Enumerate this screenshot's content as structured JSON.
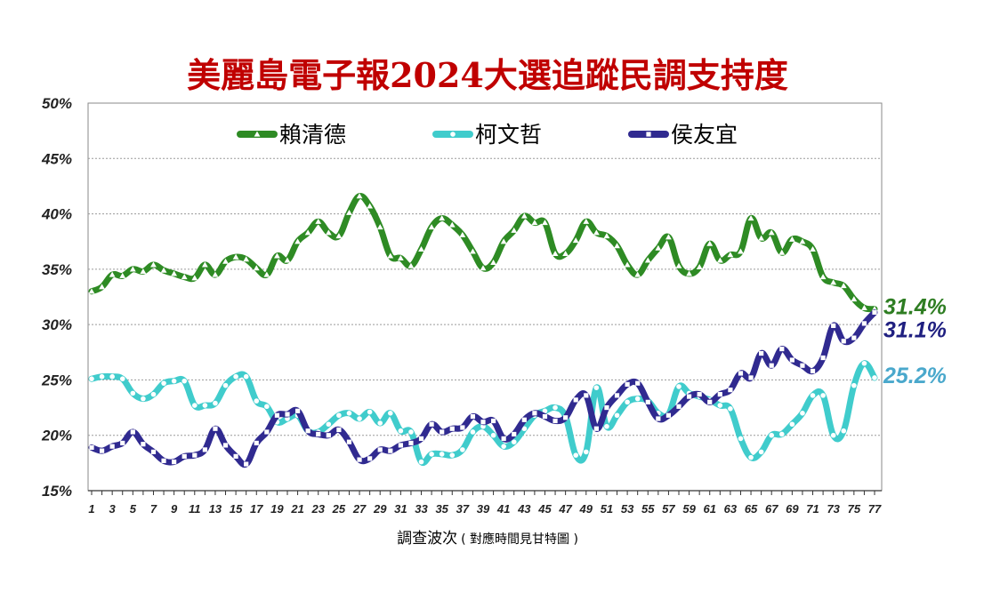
{
  "chart_data": {
    "type": "line",
    "title": "美麗島電子報2024大選追蹤民調支持度",
    "xlabel": "調查波次",
    "xlabel_note": "( 對應時間見甘特圖 )",
    "ylim": [
      15,
      50
    ],
    "yticks": [
      "15%",
      "20%",
      "25%",
      "30%",
      "35%",
      "40%",
      "45%",
      "50%"
    ],
    "ytick_values": [
      15,
      20,
      25,
      30,
      35,
      40,
      45,
      50
    ],
    "x": [
      1,
      2,
      3,
      4,
      5,
      6,
      7,
      8,
      9,
      10,
      11,
      12,
      13,
      14,
      15,
      16,
      17,
      18,
      19,
      20,
      21,
      22,
      23,
      24,
      25,
      26,
      27,
      28,
      29,
      30,
      31,
      32,
      33,
      34,
      35,
      36,
      37,
      38,
      39,
      40,
      41,
      42,
      43,
      44,
      45,
      46,
      47,
      48,
      49,
      50,
      51,
      52,
      53,
      54,
      55,
      56,
      57,
      58,
      59,
      60,
      61,
      62,
      63,
      64,
      65,
      66,
      67,
      68,
      69,
      70,
      71,
      72,
      73,
      74,
      75,
      76,
      77
    ],
    "xticks": [
      "1",
      "3",
      "5",
      "7",
      "9",
      "11",
      "13",
      "15",
      "17",
      "19",
      "21",
      "23",
      "25",
      "27",
      "29",
      "31",
      "33",
      "35",
      "37",
      "39",
      "41",
      "43",
      "45",
      "47",
      "49",
      "51",
      "53",
      "55",
      "57",
      "59",
      "61",
      "63",
      "65",
      "67",
      "69",
      "71",
      "73",
      "75",
      "77"
    ],
    "xtick_values": [
      1,
      3,
      5,
      7,
      9,
      11,
      13,
      15,
      17,
      19,
      21,
      23,
      25,
      27,
      29,
      31,
      33,
      35,
      37,
      39,
      41,
      43,
      45,
      47,
      49,
      51,
      53,
      55,
      57,
      59,
      61,
      63,
      65,
      67,
      69,
      71,
      73,
      75,
      77
    ],
    "grid": true,
    "legend_position": "top",
    "series": [
      {
        "name": "賴清德",
        "color": "#2e8b24",
        "marker": "triangle",
        "end_label": "31.4%",
        "end_label_color": "#2e7d22",
        "values": [
          33.0,
          33.4,
          34.5,
          34.4,
          35.0,
          34.8,
          35.4,
          34.9,
          34.6,
          34.3,
          34.2,
          35.4,
          34.5,
          35.7,
          36.1,
          35.9,
          35.1,
          34.5,
          36.2,
          35.8,
          37.5,
          38.3,
          39.3,
          38.3,
          38.0,
          40.1,
          41.6,
          40.7,
          38.8,
          36.2,
          36.0,
          35.3,
          36.8,
          38.8,
          39.6,
          39.0,
          38.1,
          36.6,
          35.1,
          35.6,
          37.5,
          38.5,
          39.8,
          39.2,
          39.2,
          36.4,
          36.4,
          37.6,
          39.3,
          38.3,
          38.0,
          37.1,
          35.4,
          34.5,
          35.8,
          36.9,
          37.9,
          35.3,
          34.6,
          35.2,
          37.3,
          35.8,
          36.3,
          36.6,
          39.6,
          37.8,
          38.3,
          36.5,
          37.7,
          37.5,
          36.8,
          34.3,
          33.8,
          33.5,
          32.3,
          31.5,
          31.4
        ]
      },
      {
        "name": "柯文哲",
        "color": "#40cccc",
        "marker": "circle",
        "end_label": "25.2%",
        "end_label_color": "#4aa8cc",
        "values": [
          25.1,
          25.3,
          25.3,
          25.1,
          23.8,
          23.3,
          23.7,
          24.7,
          24.9,
          24.9,
          22.7,
          22.7,
          22.9,
          24.5,
          25.3,
          25.3,
          23.1,
          22.6,
          21.2,
          21.5,
          21.8,
          20.4,
          20.3,
          21.0,
          21.8,
          22.0,
          21.5,
          22.1,
          21.1,
          22.0,
          20.4,
          20.3,
          17.6,
          18.3,
          18.3,
          18.2,
          18.7,
          20.3,
          20.8,
          20.0,
          19.0,
          19.4,
          20.6,
          21.8,
          22.2,
          22.5,
          21.7,
          18.2,
          18.5,
          24.3,
          20.8,
          21.8,
          23.0,
          23.3,
          23.1,
          22.0,
          21.9,
          24.4,
          23.8,
          23.5,
          23.2,
          22.7,
          22.4,
          19.7,
          18.0,
          18.5,
          20.0,
          20.1,
          21.0,
          22.0,
          23.6,
          23.6,
          20.0,
          20.4,
          24.5,
          26.5,
          25.2
        ]
      },
      {
        "name": "侯友宜",
        "color": "#302a90",
        "marker": "square",
        "end_label": "31.1%",
        "end_label_color": "#1f1f80",
        "values": [
          18.9,
          18.6,
          19.0,
          19.3,
          20.3,
          19.2,
          18.5,
          17.7,
          17.6,
          18.1,
          18.2,
          18.7,
          20.6,
          19.1,
          18.1,
          17.4,
          19.3,
          20.3,
          21.8,
          21.9,
          22.2,
          20.4,
          20.1,
          20.0,
          20.5,
          19.4,
          17.8,
          17.9,
          18.7,
          18.6,
          19.1,
          19.3,
          19.7,
          21.0,
          20.3,
          20.6,
          20.7,
          21.7,
          21.2,
          21.3,
          19.7,
          20.1,
          21.4,
          22.0,
          21.7,
          21.3,
          21.6,
          23.2,
          23.6,
          20.6,
          22.5,
          23.6,
          24.6,
          24.7,
          23.0,
          21.5,
          21.8,
          22.6,
          23.5,
          23.7,
          23.0,
          23.7,
          24.1,
          25.6,
          25.2,
          27.4,
          26.3,
          27.8,
          26.8,
          26.3,
          25.8,
          27.0,
          29.9,
          28.5,
          28.8,
          30.1,
          31.1
        ]
      }
    ]
  }
}
